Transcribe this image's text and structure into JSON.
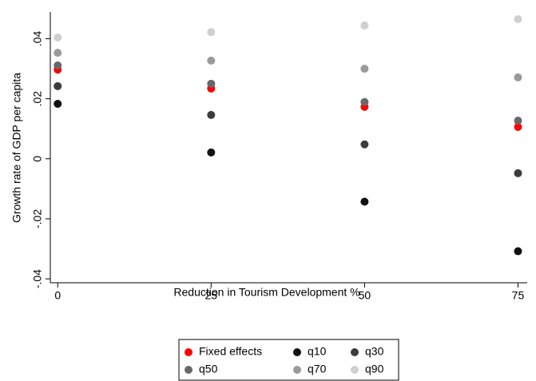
{
  "chart_data": {
    "type": "scatter",
    "xlabel": "Reduction in Tourism Development %",
    "ylabel": "Growth rate of GDP per capita",
    "x": [
      0,
      25,
      50,
      75
    ],
    "xlim": [
      -1.2,
      76.5
    ],
    "xticks": [
      0,
      25,
      50,
      75
    ],
    "ylim": [
      -0.0413,
      0.0489
    ],
    "yticks": [
      {
        "value": -0.04,
        "label": "-.04"
      },
      {
        "value": -0.02,
        "label": "-.02"
      },
      {
        "value": 0,
        "label": "0"
      },
      {
        "value": 0.02,
        "label": ".02"
      },
      {
        "value": 0.04,
        "label": ".04"
      }
    ],
    "grid": false,
    "legend_position": "bottom",
    "series": [
      {
        "name": "Fixed effects",
        "color": "#ff0000",
        "values": [
          0.0297,
          0.0234,
          0.0173,
          0.0106
        ]
      },
      {
        "name": "q10",
        "color": "#111111",
        "values": [
          0.0183,
          0.0021,
          -0.0143,
          -0.0308
        ]
      },
      {
        "name": "q30",
        "color": "#3c3c3c",
        "values": [
          0.0242,
          0.0146,
          0.0048,
          -0.0048
        ]
      },
      {
        "name": "q50",
        "color": "#686868",
        "values": [
          0.0311,
          0.025,
          0.0189,
          0.0127
        ]
      },
      {
        "name": "q70",
        "color": "#9a9a9a",
        "values": [
          0.0353,
          0.0327,
          0.03,
          0.0271
        ]
      },
      {
        "name": "q90",
        "color": "#cfcfcf",
        "values": [
          0.0404,
          0.0422,
          0.0444,
          0.0465
        ]
      }
    ]
  }
}
